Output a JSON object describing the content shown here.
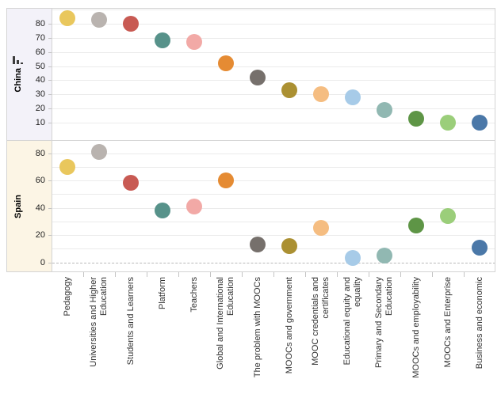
{
  "chart_data": {
    "type": "scatter",
    "title": "",
    "subtitle": "",
    "legend": "none",
    "grid": true,
    "layout_hint": "two stacked panels (one per country), categorical x-axis shared at bottom, rotated category labels, circular marks colored by category",
    "categories": [
      "Pedagogy",
      "Universities and Higher Education",
      "Students and Learners",
      "Platform",
      "Teachers",
      "Global and International Education",
      "The problem with MOOCs",
      "MOOCs and government",
      "MOOC credentials and certificates",
      "Educational equity and equality",
      "Primary and Secondary Education",
      "MOOCs and employability",
      "MOOCs and Enterprise",
      "Business and economic"
    ],
    "series": [
      {
        "name": "China",
        "values": [
          84,
          83,
          80,
          68,
          67,
          52,
          42,
          33,
          30,
          28,
          19,
          13,
          10,
          10
        ],
        "y_ticks": [
          80,
          70,
          60,
          50,
          40,
          30,
          20,
          10
        ],
        "y_gridlines": [
          90,
          80,
          70,
          60,
          50,
          40,
          30,
          20,
          10
        ],
        "ylim": [
          0,
          91
        ],
        "zero_line_dashed": false,
        "sort_icon": true
      },
      {
        "name": "Spain",
        "values": [
          70,
          81,
          58,
          38,
          41,
          60,
          13,
          12,
          25,
          3,
          5,
          27,
          34,
          11
        ],
        "y_ticks": [
          80,
          60,
          40,
          20,
          0
        ],
        "y_gridlines": [
          80,
          70,
          60,
          50,
          40,
          30,
          20,
          10
        ],
        "ylim": [
          -8,
          89
        ],
        "zero_line_dashed": true,
        "sort_icon": false
      }
    ],
    "point_colors": [
      "#e9c75d",
      "#b9b3af",
      "#c85a53",
      "#57928a",
      "#f2a9a6",
      "#e58b33",
      "#76706c",
      "#ab9032",
      "#f5bd81",
      "#a7cbe8",
      "#91b8b2",
      "#5e9546",
      "#9bce7a",
      "#4b78a8"
    ]
  },
  "colors": {
    "band_china": "#f3f2f9",
    "band_spain": "#fcf5e5",
    "frame": "#d4d4d4",
    "gridline": "#ebebeb",
    "zero_line": "#b9b9b9",
    "axis_tick": "#c4c4c4",
    "category_text": "#333333",
    "tick_text": "#1f1f1f"
  },
  "icons": {
    "sort_icon": "descending-bars-sort-icon"
  }
}
